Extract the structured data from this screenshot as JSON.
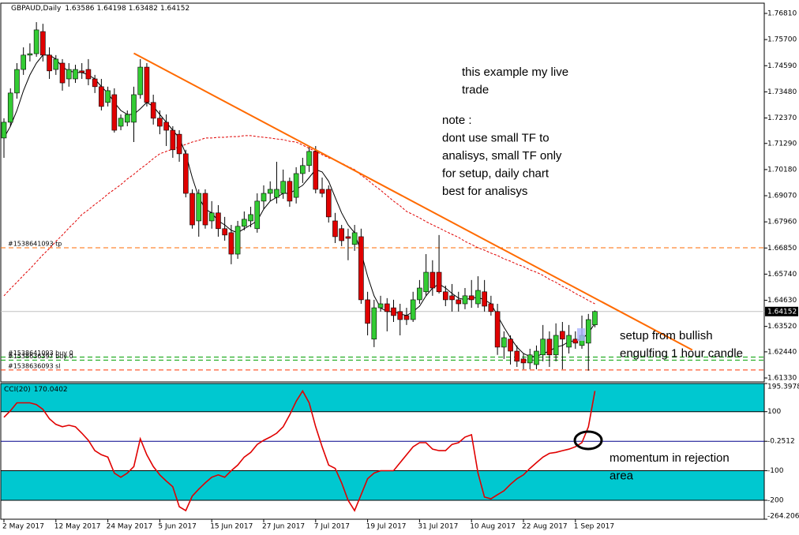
{
  "chart_data": [
    {
      "type": "candlestick",
      "title": "GBPAUD,Daily",
      "categories": [
        "2 May 2017",
        null,
        null,
        null,
        null,
        null,
        null,
        null,
        "12 May 2017",
        null,
        null,
        null,
        null,
        null,
        null,
        null,
        "24 May 2017",
        null,
        null,
        null,
        null,
        null,
        null,
        null,
        "5 Jun 2017",
        null,
        null,
        null,
        null,
        null,
        null,
        null,
        "15 Jun 2017",
        null,
        null,
        null,
        null,
        null,
        null,
        null,
        "27 Jun 2017",
        null,
        null,
        null,
        null,
        null,
        null,
        null,
        "7 Jul 2017",
        null,
        null,
        null,
        null,
        null,
        null,
        null,
        "19 Jul 2017",
        null,
        null,
        null,
        null,
        null,
        null,
        null,
        "31 Jul 2017",
        null,
        null,
        null,
        null,
        null,
        null,
        null,
        "10 Aug 2017",
        null,
        null,
        null,
        null,
        null,
        null,
        null,
        "22 Aug 2017",
        null,
        null,
        null,
        null,
        null,
        null,
        null,
        "1 Sep 2017",
        null,
        null,
        null
      ],
      "open": [
        1.7152,
        1.7219,
        1.7343,
        1.7443,
        1.7504,
        1.751,
        1.7604,
        1.7504,
        1.7443,
        1.747,
        1.7403,
        1.7403,
        1.7437,
        1.7443,
        1.7403,
        1.737,
        1.7303,
        1.7336,
        1.7202,
        1.7219,
        1.7219,
        1.7336,
        1.7453,
        1.7303,
        1.7236,
        1.7219,
        1.7185,
        1.7168,
        1.7085,
        1.6917,
        1.68,
        1.6917,
        1.68,
        1.6834,
        1.6767,
        1.675,
        1.6659,
        1.6777,
        1.68,
        1.6767,
        1.6884,
        1.6917,
        1.69,
        1.6917,
        1.6968,
        1.69,
        1.7001,
        1.7035,
        1.7095,
        1.6934,
        1.6934,
        1.68,
        1.6767,
        1.6733,
        1.67,
        1.6733,
        1.6465,
        1.6298,
        1.6431,
        1.6448,
        1.6431,
        1.6415,
        1.6398,
        1.6381,
        1.6465,
        1.6499,
        1.6582,
        1.6582,
        1.6499,
        1.6482,
        1.6465,
        1.6448,
        1.6482,
        1.6448,
        1.6499,
        1.6448,
        1.6415,
        1.6264,
        1.6298,
        1.6247,
        1.6214,
        1.6197,
        1.619,
        1.6231,
        1.6298,
        1.6231,
        1.6331,
        1.6264,
        1.6298,
        1.6271,
        1.6281,
        1.63586
      ],
      "high": [
        1.7236,
        1.7363,
        1.747,
        1.7537,
        1.7554,
        1.7644,
        1.7637,
        1.7537,
        1.7504,
        1.7487,
        1.747,
        1.7463,
        1.747,
        1.7487,
        1.742,
        1.7403,
        1.737,
        1.7363,
        1.7252,
        1.7269,
        1.737,
        1.7487,
        1.747,
        1.7336,
        1.7269,
        1.7252,
        1.7202,
        1.7185,
        1.7102,
        1.6934,
        1.6934,
        1.6934,
        1.6884,
        1.6867,
        1.6817,
        1.6783,
        1.68,
        1.684,
        1.686,
        1.6917,
        1.6951,
        1.6968,
        1.7051,
        1.7018,
        1.6984,
        1.7028,
        1.7068,
        1.7118,
        1.7118,
        1.6984,
        1.6951,
        1.6834,
        1.6783,
        1.6767,
        1.6783,
        1.6767,
        1.6499,
        1.6465,
        1.6482,
        1.6472,
        1.6465,
        1.6448,
        1.6431,
        1.6499,
        1.6549,
        1.6659,
        1.6633,
        1.674,
        1.6525,
        1.6532,
        1.6499,
        1.6515,
        1.6549,
        1.6565,
        1.6549,
        1.6482,
        1.6448,
        1.6331,
        1.6314,
        1.6271,
        1.6237,
        1.6257,
        1.6271,
        1.6358,
        1.6331,
        1.6365,
        1.6371,
        1.6358,
        1.6331,
        1.6398,
        1.6405,
        1.64198
      ],
      "low": [
        1.7068,
        1.7202,
        1.7319,
        1.742,
        1.7477,
        1.7497,
        1.7477,
        1.7403,
        1.742,
        1.7353,
        1.737,
        1.7386,
        1.7403,
        1.7376,
        1.7343,
        1.7269,
        1.7286,
        1.7175,
        1.7185,
        1.7202,
        1.7135,
        1.7319,
        1.7286,
        1.7209,
        1.7168,
        1.7118,
        1.7068,
        1.7051,
        1.69,
        1.6767,
        1.6733,
        1.6767,
        1.6767,
        1.6733,
        1.6716,
        1.6616,
        1.6639,
        1.676,
        1.6773,
        1.675,
        1.685,
        1.6884,
        1.6874,
        1.6894,
        1.686,
        1.6874,
        1.6961,
        1.7008,
        1.6917,
        1.69,
        1.6793,
        1.6706,
        1.6693,
        1.6633,
        1.6673,
        1.6448,
        1.6314,
        1.6264,
        1.6415,
        1.6331,
        1.6371,
        1.6314,
        1.6358,
        1.6371,
        1.6448,
        1.6482,
        1.6482,
        1.6492,
        1.6438,
        1.6415,
        1.6415,
        1.6425,
        1.6431,
        1.6431,
        1.6415,
        1.6398,
        1.6231,
        1.6214,
        1.619,
        1.618,
        1.617,
        1.617,
        1.617,
        1.6204,
        1.618,
        1.6204,
        1.617,
        1.6237,
        1.6257,
        1.6257,
        1.6164,
        1.63482
      ],
      "close": [
        1.7219,
        1.7343,
        1.7443,
        1.7504,
        1.751,
        1.7611,
        1.7504,
        1.7437,
        1.7487,
        1.7386,
        1.7443,
        1.7443,
        1.743,
        1.7403,
        1.737,
        1.7286,
        1.7353,
        1.7185,
        1.7236,
        1.7252,
        1.7336,
        1.7453,
        1.7303,
        1.7236,
        1.7202,
        1.7185,
        1.7102,
        1.7085,
        1.6917,
        1.6783,
        1.6917,
        1.6783,
        1.6834,
        1.6767,
        1.674,
        1.6659,
        1.6777,
        1.6807,
        1.6827,
        1.6884,
        1.6917,
        1.6934,
        1.6934,
        1.6968,
        1.6884,
        1.7001,
        1.7035,
        1.7095,
        1.6934,
        1.6917,
        1.6817,
        1.6733,
        1.6716,
        1.6726,
        1.675,
        1.6465,
        1.6365,
        1.6431,
        1.6448,
        1.6415,
        1.6398,
        1.6381,
        1.6381,
        1.6465,
        1.6515,
        1.6582,
        1.6515,
        1.6499,
        1.6465,
        1.6465,
        1.6448,
        1.6482,
        1.6465,
        1.6505,
        1.6438,
        1.6415,
        1.6264,
        1.6304,
        1.6247,
        1.6204,
        1.6197,
        1.6231,
        1.6247,
        1.6298,
        1.6231,
        1.6314,
        1.6298,
        1.6314,
        1.6281,
        1.6314,
        1.6381,
        1.64152
      ],
      "up_color": "#33cc33",
      "down_color": "#e00000",
      "series": [
        {
          "color": "#000000",
          "style": "solid",
          "values": [
            1.7152,
            1.7202,
            1.7269,
            1.7353,
            1.742,
            1.747,
            1.7504,
            1.7504,
            1.7487,
            1.7453,
            1.7437,
            1.743,
            1.743,
            1.742,
            1.7403,
            1.737,
            1.7343,
            1.7303,
            1.7269,
            1.7252,
            1.7252,
            1.7276,
            1.7303,
            1.7286,
            1.7252,
            1.7219,
            1.7185,
            1.7152,
            1.7085,
            1.6984,
            1.69,
            1.685,
            1.6834,
            1.68,
            1.6783,
            1.676,
            1.675,
            1.6767,
            1.6783,
            1.68,
            1.685,
            1.6884,
            1.69,
            1.6917,
            1.6917,
            1.6934,
            1.6951,
            1.6984,
            1.7018,
            1.7008,
            1.6968,
            1.69,
            1.6834,
            1.6783,
            1.675,
            1.6666,
            1.6565,
            1.6482,
            1.6431,
            1.6415,
            1.6415,
            1.6405,
            1.6398,
            1.6415,
            1.6438,
            1.6482,
            1.6515,
            1.6532,
            1.6515,
            1.6492,
            1.6472,
            1.6465,
            1.6472,
            1.6475,
            1.6465,
            1.6448,
            1.6398,
            1.6348,
            1.6304,
            1.6264,
            1.6237,
            1.6224,
            1.6224,
            1.6237,
            1.6247,
            1.6264,
            1.6271,
            1.6288,
            1.6291,
            1.6298,
            1.6324,
            1.6365
          ]
        },
        {
          "color": "#e00000",
          "style": "dashed",
          "values": [
            1.6482,
            1.6512,
            1.6539,
            1.6569,
            1.6596,
            1.6626,
            1.6656,
            1.6683,
            1.6713,
            1.674,
            1.677,
            1.6797,
            1.6827,
            1.6847,
            1.687,
            1.689,
            1.6914,
            1.6934,
            1.6954,
            1.6978,
            1.6998,
            1.7021,
            1.7041,
            1.7065,
            1.7085,
            1.7095,
            1.7105,
            1.7115,
            1.7125,
            1.7135,
            1.7142,
            1.7152,
            1.7152,
            1.7155,
            1.7155,
            1.7158,
            1.7158,
            1.7162,
            1.7162,
            1.7158,
            1.7155,
            1.7152,
            1.7148,
            1.7145,
            1.7138,
            1.7135,
            1.7122,
            1.7108,
            1.7095,
            1.7081,
            1.7068,
            1.7058,
            1.7045,
            1.7031,
            1.7018,
            1.6994,
            1.6974,
            1.6951,
            1.6931,
            1.6907,
            1.6884,
            1.6864,
            1.684,
            1.6827,
            1.6813,
            1.6797,
            1.6783,
            1.677,
            1.6756,
            1.6743,
            1.673,
            1.6713,
            1.67,
            1.6686,
            1.6676,
            1.6663,
            1.6653,
            1.6639,
            1.6629,
            1.6616,
            1.6606,
            1.6592,
            1.6582,
            1.6569,
            1.6552,
            1.6539,
            1.6522,
            1.6509,
            1.6492,
            1.6478,
            1.6462,
            1.6448
          ]
        }
      ],
      "ylim": [
        1.61163,
        1.77246
      ],
      "yticks": [
        {
          "value": 1.7681,
          "label": "1.76810"
        },
        {
          "value": 1.757,
          "label": "1.75700"
        },
        {
          "value": 1.7459,
          "label": "1.74590"
        },
        {
          "value": 1.7348,
          "label": "1.73480"
        },
        {
          "value": 1.7237,
          "label": "1.72370"
        },
        {
          "value": 1.7129,
          "label": "1.71290"
        },
        {
          "value": 1.7018,
          "label": "1.70180"
        },
        {
          "value": 1.6907,
          "label": "1.69070"
        },
        {
          "value": 1.6796,
          "label": "1.67960"
        },
        {
          "value": 1.6685,
          "label": "1.66850"
        },
        {
          "value": 1.6574,
          "label": "1.65740"
        },
        {
          "value": 1.6463,
          "label": "1.64630"
        },
        {
          "value": 1.6352,
          "label": "1.63520"
        },
        {
          "value": 1.6244,
          "label": "1.62440"
        },
        {
          "value": 1.6133,
          "label": "1.61330"
        }
      ],
      "grid": false,
      "order_lines": [
        {
          "label": "#1538641093 tp",
          "value": 1.6686,
          "color": "#ff6a00"
        },
        {
          "label": "#1538641093 buy 0",
          "value": 1.6222,
          "color": "#00a000"
        },
        {
          "label": "#1538636397 buy 0",
          "value": 1.6209,
          "color": "#00a000"
        },
        {
          "label": "#1538636093 sl",
          "value": 1.6167,
          "color": "#ff3300"
        }
      ],
      "trendline": {
        "color": "#ff6a00",
        "bars": [
          20,
          106
        ],
        "prices": [
          1.7512,
          1.6252
        ]
      },
      "annotations": [
        {
          "lines": [
            "this example my live",
            "trade"
          ]
        },
        {
          "lines": [
            "note :",
            "dont use small TF to",
            "analisys, small TF only",
            "for setup, daily chart",
            "best for analisys"
          ]
        },
        {
          "lines": [
            "setup from bullish",
            "engulfing 1 hour candle"
          ]
        },
        {
          "lines": [
            "momentum in rejection",
            "area"
          ]
        }
      ]
    },
    {
      "type": "line",
      "title": "CCI(20)",
      "color": "#e00000",
      "values": [
        81,
        103,
        130,
        130,
        130,
        124,
        108,
        76,
        57,
        49,
        54,
        49,
        27,
        3,
        -32,
        -46,
        -54,
        -108,
        -122,
        -108,
        -86,
        8,
        -46,
        -86,
        -114,
        -135,
        -154,
        -222,
        -235,
        -186,
        -162,
        -141,
        -122,
        -114,
        -122,
        -100,
        -81,
        -54,
        -38,
        -11,
        3,
        14,
        27,
        49,
        89,
        135,
        170,
        130,
        49,
        -19,
        -81,
        -92,
        -141,
        -200,
        -235,
        -181,
        -127,
        -108,
        -100,
        -100,
        -100,
        -73,
        -46,
        -19,
        -5,
        -5,
        -27,
        -32,
        -32,
        -11,
        -5,
        14,
        22,
        -108,
        -189,
        -195,
        -181,
        -168,
        -146,
        -127,
        -114,
        -92,
        -73,
        -54,
        -41,
        -38,
        -32,
        -27,
        -19,
        -5,
        49,
        170.0402
      ],
      "ylim": [
        -264.2063,
        195.3978
      ],
      "yticks": [
        195.3978,
        100,
        -0.2512,
        -100,
        -200,
        -264.2063
      ],
      "bands": [
        {
          "from": 100,
          "to": 195.3978,
          "color": "#00c8d0"
        },
        {
          "from": -200,
          "to": -100,
          "color": "#00c8d0"
        }
      ],
      "levels": [
        {
          "value": -0.2512,
          "color": "#00008b"
        }
      ]
    }
  ]
}
